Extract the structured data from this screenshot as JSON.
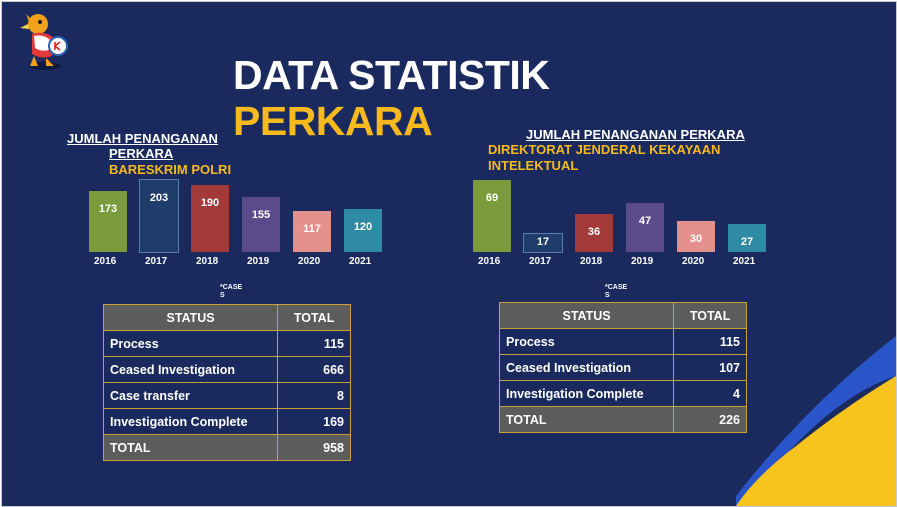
{
  "title": {
    "line1": "DATA STATISTIK",
    "line2": "PERKARA"
  },
  "left": {
    "heading_line1": "JUMLAH PENANGANAN",
    "heading_line2": "PERKARA",
    "subheading": "BARESKRIM POLRI",
    "cases_label": "*CASES",
    "chart_data": {
      "type": "bar",
      "categories": [
        "2016",
        "2017",
        "2018",
        "2019",
        "2020",
        "2021"
      ],
      "values": [
        173,
        203,
        190,
        155,
        117,
        120
      ],
      "colors": [
        "#7a9a3b",
        "#1f3d6b",
        "#a33a3a",
        "#5b4b8a",
        "#e4908c",
        "#2f8aa4"
      ]
    },
    "table": {
      "headers": [
        "STATUS",
        "TOTAL"
      ],
      "rows": [
        {
          "status": "Process",
          "total": "115"
        },
        {
          "status": "Ceased Investigation",
          "total": "666"
        },
        {
          "status": "Case transfer",
          "total": "8"
        },
        {
          "status": "Investigation Complete",
          "total": "169"
        }
      ],
      "total_row": {
        "status": "TOTAL",
        "total": "958"
      }
    }
  },
  "right": {
    "heading_line1": "JUMLAH PENANGANAN PERKARA",
    "subheading_line1": "DIREKTORAT JENDERAL KEKAYAAN",
    "subheading_line2": "INTELEKTUAL",
    "cases_label": "*CASES",
    "chart_data": {
      "type": "bar",
      "categories": [
        "2016",
        "2017",
        "2018",
        "2019",
        "2020",
        "2021"
      ],
      "values": [
        69,
        17,
        36,
        47,
        30,
        27
      ],
      "colors": [
        "#7a9a3b",
        "#1f3d6b",
        "#a33a3a",
        "#5b4b8a",
        "#e4908c",
        "#2f8aa4"
      ]
    },
    "table": {
      "headers": [
        "STATUS",
        "TOTAL"
      ],
      "rows": [
        {
          "status": "Process",
          "total": "115"
        },
        {
          "status": "Ceased Investigation",
          "total": "107"
        },
        {
          "status": "Investigation Complete",
          "total": "4"
        }
      ],
      "total_row": {
        "status": "TOTAL",
        "total": "226"
      }
    }
  },
  "colors": {
    "background": "#1a2a5e",
    "accent": "#f7b91e",
    "table_border": "#c8a233",
    "header_fill": "#5c5c5c"
  },
  "icons": {
    "logo": "mascot-logo-icon"
  }
}
